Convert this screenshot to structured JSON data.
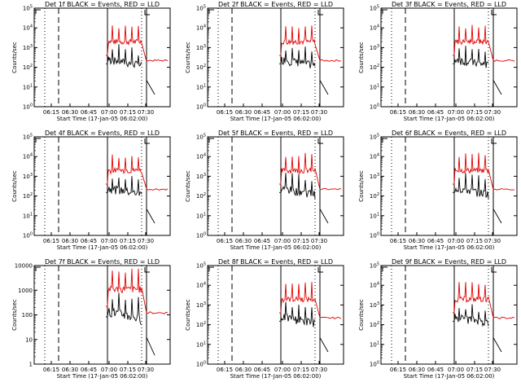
{
  "chart_data": [
    {
      "type": "line",
      "title": "Det 1f BLACK = Events, RED = LLD",
      "ylabel": "Counts/sec",
      "xlabel": "Start Time (17-Jan-05 06:02:00)",
      "xticks": [
        "06:15",
        "06:30",
        "06:45",
        "07:00",
        "07:15",
        "07:30"
      ],
      "yticks": [
        "10^0",
        "10^1",
        "10^2",
        "10^3",
        "10^4",
        "10^5"
      ],
      "yscale": "log",
      "ylim": [
        1,
        100000
      ],
      "series": [
        {
          "color": "#000000"
        },
        {
          "color": "#e00000"
        }
      ]
    },
    {
      "type": "line",
      "title": "Det 2f BLACK = Events, RED = LLD",
      "ylabel": "Counts/sec",
      "xlabel": "Start Time (17-Jan-05 06:02:00)",
      "xticks": [
        "06:15",
        "06:30",
        "06:45",
        "07:00",
        "07:15",
        "07:30"
      ],
      "yticks": [
        "10^0",
        "10^1",
        "10^2",
        "10^3",
        "10^4",
        "10^5"
      ],
      "yscale": "log",
      "ylim": [
        1,
        100000
      ],
      "series": [
        {
          "color": "#000000"
        },
        {
          "color": "#e00000"
        }
      ]
    },
    {
      "type": "line",
      "title": "Det 3f BLACK = Events, RED = LLD",
      "ylabel": "Counts/sec",
      "xlabel": "Start Time (17-Jan-05 06:02:00)",
      "xticks": [
        "06:15",
        "06:30",
        "06:45",
        "07:00",
        "07:15",
        "07:30"
      ],
      "yticks": [
        "10^0",
        "10^1",
        "10^2",
        "10^3",
        "10^4",
        "10^5"
      ],
      "yscale": "log",
      "ylim": [
        1,
        100000
      ],
      "series": [
        {
          "color": "#000000"
        },
        {
          "color": "#e00000"
        }
      ]
    },
    {
      "type": "line",
      "title": "Det 4f BLACK = Events, RED = LLD",
      "ylabel": "Counts/sec",
      "xlabel": "Start Time (17-Jan-05 06:02:00)",
      "xticks": [
        "06:15",
        "06:30",
        "06:45",
        "07:00",
        "07:15",
        "07:30"
      ],
      "yticks": [
        "10^0",
        "10^1",
        "10^2",
        "10^3",
        "10^4",
        "10^5"
      ],
      "yscale": "log",
      "ylim": [
        1,
        100000
      ],
      "series": [
        {
          "color": "#000000"
        },
        {
          "color": "#e00000"
        }
      ]
    },
    {
      "type": "line",
      "title": "Det 5f BLACK = Events, RED = LLD",
      "ylabel": "Counts/sec",
      "xlabel": "Start Time (17-Jan-05 06:02:00)",
      "xticks": [
        "06:15",
        "06:30",
        "06:45",
        "07:00",
        "07:15",
        "07:30"
      ],
      "yticks": [
        "10^0",
        "10^1",
        "10^2",
        "10^3",
        "10^4",
        "10^5"
      ],
      "yscale": "log",
      "ylim": [
        1,
        100000
      ],
      "series": [
        {
          "color": "#000000"
        },
        {
          "color": "#e00000"
        }
      ]
    },
    {
      "type": "line",
      "title": "Det 6f BLACK = Events, RED = LLD",
      "ylabel": "Counts/sec",
      "xlabel": "Start Time (17-Jan-05 06:02:00)",
      "xticks": [
        "06:15",
        "06:30",
        "06:45",
        "07:00",
        "07:15",
        "07:30"
      ],
      "yticks": [
        "10^0",
        "10^1",
        "10^2",
        "10^3",
        "10^4",
        "10^5"
      ],
      "yscale": "log",
      "ylim": [
        1,
        100000
      ],
      "series": [
        {
          "color": "#000000"
        },
        {
          "color": "#e00000"
        }
      ]
    },
    {
      "type": "line",
      "title": "Det 7f BLACK = Events, RED = LLD",
      "ylabel": "Counts/sec",
      "xlabel": "Start Time (17-Jan-05 06:02:00)",
      "xticks": [
        "06:15",
        "06:30",
        "06:45",
        "07:00",
        "07:15",
        "07:30"
      ],
      "yticks": [
        "1",
        "10",
        "100",
        "1000",
        "10000"
      ],
      "yscale": "log",
      "ylim": [
        1,
        10000
      ],
      "series": [
        {
          "color": "#000000"
        },
        {
          "color": "#e00000"
        }
      ]
    },
    {
      "type": "line",
      "title": "Det 8f BLACK = Events, RED = LLD",
      "ylabel": "Counts/sec",
      "xlabel": "Start Time (17-Jan-05 06:02:00)",
      "xticks": [
        "06:15",
        "06:30",
        "06:45",
        "07:00",
        "07:15",
        "07:30"
      ],
      "yticks": [
        "10^0",
        "10^1",
        "10^2",
        "10^3",
        "10^4",
        "10^5"
      ],
      "yscale": "log",
      "ylim": [
        1,
        100000
      ],
      "series": [
        {
          "color": "#000000"
        },
        {
          "color": "#e00000"
        }
      ]
    },
    {
      "type": "line",
      "title": "Det 9f BLACK = Events, RED = LLD",
      "ylabel": "Counts/sec",
      "xlabel": "Start Time (17-Jan-05 06:02:00)",
      "xticks": [
        "06:15",
        "06:30",
        "06:45",
        "07:00",
        "07:15",
        "07:30"
      ],
      "yticks": [
        "10^0",
        "10^1",
        "10^2",
        "10^3",
        "10^4",
        "10^5"
      ],
      "yscale": "log",
      "ylim": [
        1,
        100000
      ],
      "series": [
        {
          "color": "#000000"
        },
        {
          "color": "#e00000"
        }
      ]
    }
  ]
}
